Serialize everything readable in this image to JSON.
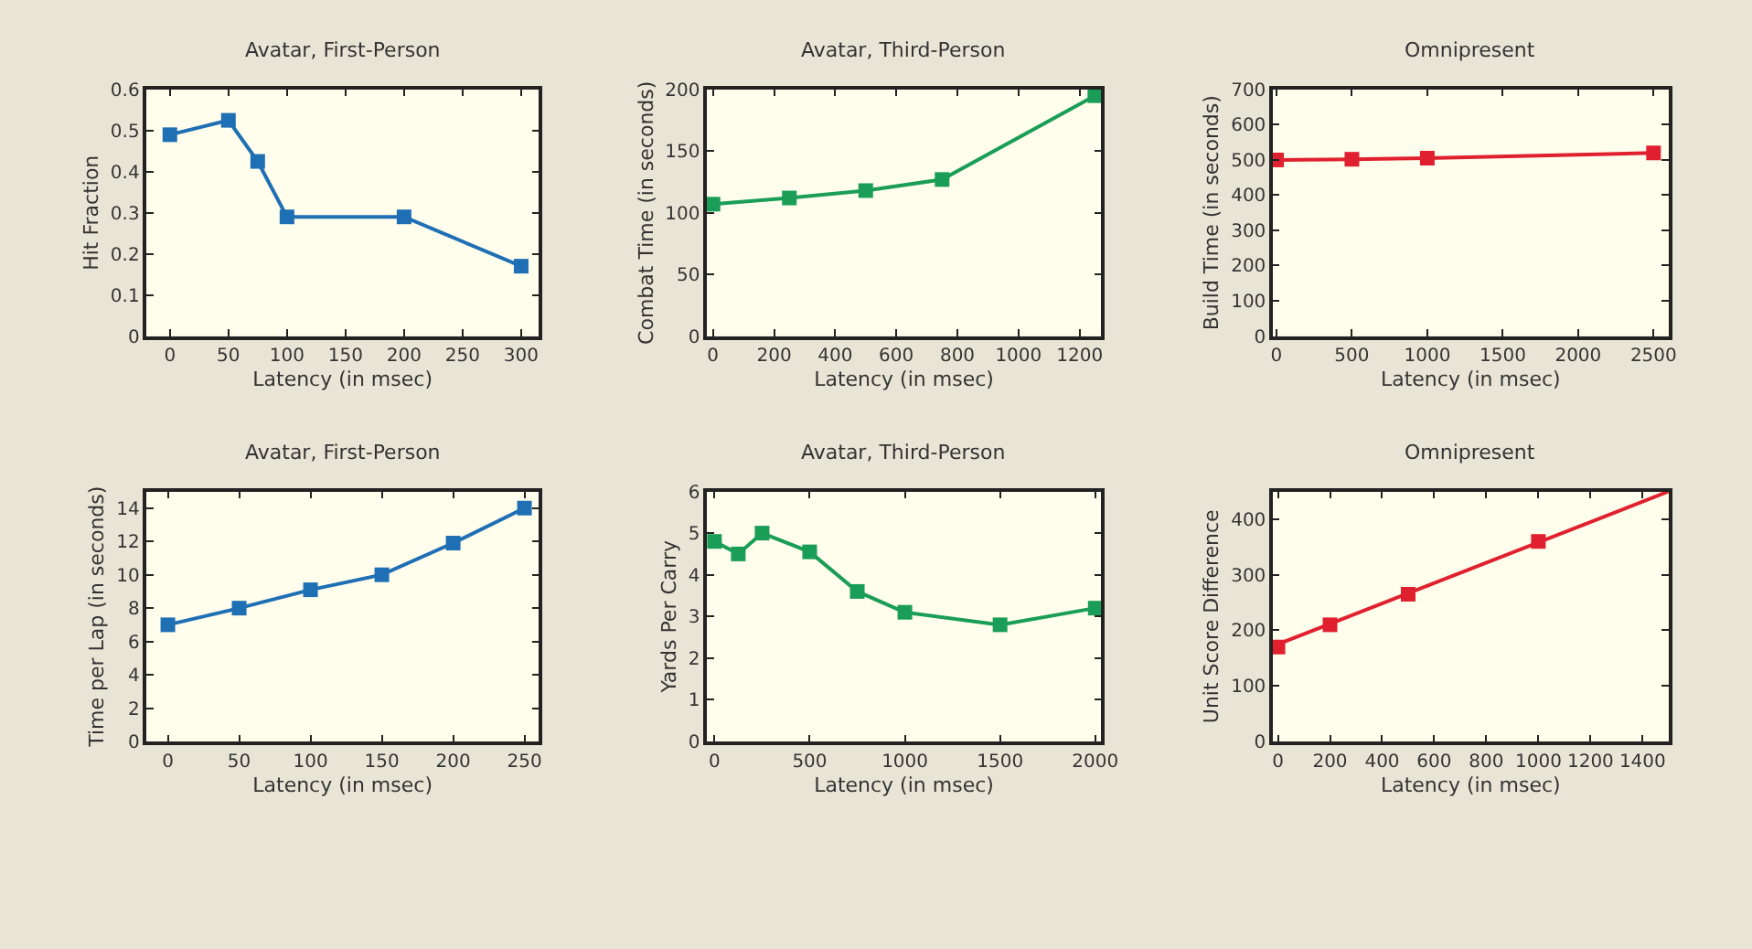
{
  "chart_data": [
    {
      "type": "line",
      "title": "Avatar, First-Person",
      "xlabel": "Latency (in msec)",
      "ylabel": "Hit Fraction",
      "x": [
        0,
        50,
        75,
        100,
        200,
        300
      ],
      "marker": "square",
      "grid": false,
      "series": [
        {
          "color": "#1f6fb5",
          "values": [
            0.49,
            0.525,
            0.425,
            0.29,
            0.29,
            0.17
          ]
        }
      ],
      "xlim": [
        -20,
        315
      ],
      "xticks": [
        0,
        50,
        100,
        150,
        200,
        250,
        300
      ],
      "ylim": [
        0,
        0.6
      ],
      "yticks": [
        0,
        0.1,
        0.2,
        0.3,
        0.4,
        0.5,
        0.6
      ]
    },
    {
      "type": "line",
      "title": "Avatar, Third-Person",
      "xlabel": "Latency (in msec)",
      "ylabel": "Combat Time (in seconds)",
      "x": [
        0,
        250,
        500,
        750,
        1250
      ],
      "marker": "square",
      "grid": false,
      "series": [
        {
          "color": "#1a9e57",
          "values": [
            107,
            112,
            118,
            127,
            195
          ]
        }
      ],
      "xlim": [
        -20,
        1270
      ],
      "xticks": [
        0,
        200,
        400,
        600,
        800,
        1000,
        1200
      ],
      "ylim": [
        0,
        200
      ],
      "yticks": [
        0,
        50,
        100,
        150,
        200
      ]
    },
    {
      "type": "line",
      "title": "Omnipresent",
      "xlabel": "Latency (in msec)",
      "ylabel": "Build Time (in seconds)",
      "x": [
        0,
        500,
        1000,
        2500
      ],
      "marker": "square",
      "grid": false,
      "series": [
        {
          "color": "#e0202e",
          "values": [
            500,
            502,
            505,
            520
          ]
        }
      ],
      "xlim": [
        -25,
        2600
      ],
      "xticks": [
        0,
        500,
        1000,
        1500,
        2000,
        2500
      ],
      "ylim": [
        0,
        700
      ],
      "yticks": [
        0,
        100,
        200,
        300,
        400,
        500,
        600,
        700
      ]
    },
    {
      "type": "line",
      "title": "Avatar, First-Person",
      "xlabel": "Latency (in msec)",
      "ylabel": "Time per Lap (in seconds)",
      "x": [
        0,
        50,
        100,
        150,
        200,
        250
      ],
      "marker": "square",
      "grid": false,
      "series": [
        {
          "color": "#1f6fb5",
          "values": [
            7,
            8,
            9.1,
            10,
            11.9,
            14
          ]
        }
      ],
      "xlim": [
        -15,
        260
      ],
      "xticks": [
        0,
        50,
        100,
        150,
        200,
        250
      ],
      "ylim": [
        0,
        15
      ],
      "yticks": [
        0,
        2,
        4,
        6,
        8,
        10,
        12,
        14
      ]
    },
    {
      "type": "line",
      "title": "Avatar, Third-Person",
      "xlabel": "Latency (in msec)",
      "ylabel": "Yards Per Carry",
      "x": [
        0,
        125,
        250,
        500,
        750,
        1000,
        1500,
        2000
      ],
      "marker": "square",
      "grid": false,
      "series": [
        {
          "color": "#1a9e57",
          "values": [
            4.8,
            4.5,
            5.0,
            4.55,
            3.6,
            3.1,
            2.8,
            3.2
          ]
        }
      ],
      "xlim": [
        -40,
        2030
      ],
      "xticks": [
        0,
        500,
        1000,
        1500,
        2000
      ],
      "ylim": [
        0,
        6
      ],
      "yticks": [
        0,
        1,
        2,
        3,
        4,
        5,
        6
      ]
    },
    {
      "type": "line",
      "title": "Omnipresent",
      "xlabel": "Latency (in msec)",
      "ylabel": "Unit Score Difference",
      "x": [
        0,
        200,
        500,
        1000
      ],
      "marker": "square",
      "grid": false,
      "series": [
        {
          "type": "scatter",
          "color": "#e0202e",
          "values": [
            170,
            210,
            265,
            360
          ]
        },
        {
          "type": "line",
          "color": "#e0202e",
          "x": [
            0,
            1500
          ],
          "values": [
            175,
            450
          ],
          "marker": "none"
        }
      ],
      "xlim": [
        -20,
        1500
      ],
      "xticks": [
        0,
        200,
        400,
        600,
        800,
        1000,
        1200,
        1400
      ],
      "ylim": [
        0,
        450
      ],
      "yticks": [
        0,
        100,
        200,
        300,
        400
      ]
    }
  ]
}
